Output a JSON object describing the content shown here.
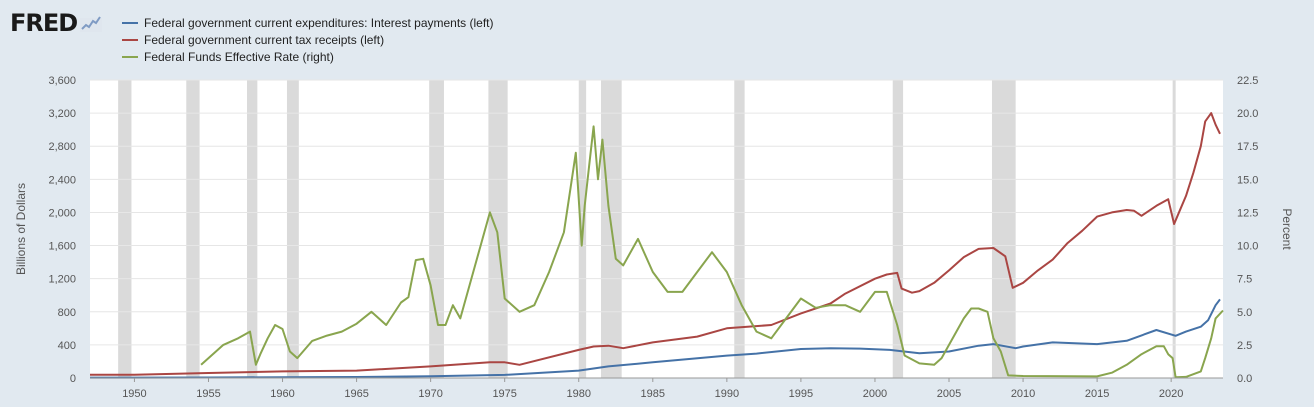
{
  "brand": {
    "logo_text": "FRED"
  },
  "colors": {
    "interest": "#4572a7",
    "receipts": "#aa4643",
    "fedfunds": "#89a54e",
    "recession": "#dadada",
    "plot_bg": "#ffffff",
    "axis_text": "#555555"
  },
  "chart_data": {
    "type": "line",
    "title": "",
    "xlabel": "",
    "ylabel_left": "Billions of Dollars",
    "ylabel_right": "Percent",
    "xlim": [
      1947,
      2023.5
    ],
    "ylim_left": [
      0,
      3600
    ],
    "ylim_right": [
      0,
      22.5
    ],
    "x_ticks": [
      1950,
      1955,
      1960,
      1965,
      1970,
      1975,
      1980,
      1985,
      1990,
      1995,
      2000,
      2005,
      2010,
      2015,
      2020
    ],
    "x_tick_labels": [
      "1950",
      "1955",
      "1960",
      "1965",
      "1970",
      "1975",
      "1980",
      "1985",
      "1990",
      "1995",
      "2000",
      "2005",
      "2010",
      "2015",
      "2020"
    ],
    "y_left_ticks": [
      0,
      400,
      800,
      1200,
      1600,
      2000,
      2400,
      2800,
      3200,
      3600
    ],
    "y_left_tick_labels": [
      "0",
      "400",
      "800",
      "1,200",
      "1,600",
      "2,000",
      "2,400",
      "2,800",
      "3,200",
      "3,600"
    ],
    "y_right_ticks": [
      0,
      2.5,
      5,
      7.5,
      10,
      12.5,
      15,
      17.5,
      20,
      22.5
    ],
    "y_right_tick_labels": [
      "0.0",
      "2.5",
      "5.0",
      "7.5",
      "10.0",
      "12.5",
      "15.0",
      "17.5",
      "20.0",
      "22.5"
    ],
    "recessions": [
      [
        1948.9,
        1949.8
      ],
      [
        1953.5,
        1954.4
      ],
      [
        1957.6,
        1958.3
      ],
      [
        1960.3,
        1961.1
      ],
      [
        1969.9,
        1970.9
      ],
      [
        1973.9,
        1975.2
      ],
      [
        1980.0,
        1980.5
      ],
      [
        1981.5,
        1982.9
      ],
      [
        1990.5,
        1991.2
      ],
      [
        2001.2,
        2001.9
      ],
      [
        2007.9,
        2009.5
      ],
      [
        2020.1,
        2020.3
      ]
    ],
    "series": [
      {
        "name": "Federal government current expenditures: Interest payments (left)",
        "axis": "left",
        "color": "#4572a7",
        "x": [
          1947,
          1950,
          1955,
          1960,
          1965,
          1970,
          1975,
          1980,
          1982,
          1985,
          1990,
          1992,
          1995,
          1997,
          1999,
          2001,
          2003,
          2005,
          2007,
          2008,
          2009.5,
          2010,
          2012,
          2015,
          2017,
          2019,
          2020.3,
          2021,
          2022,
          2022.5,
          2023,
          2023.3
        ],
        "y": [
          5,
          5,
          6,
          10,
          12,
          20,
          38,
          90,
          140,
          190,
          270,
          295,
          350,
          360,
          355,
          340,
          300,
          320,
          390,
          410,
          360,
          380,
          430,
          410,
          450,
          580,
          510,
          560,
          620,
          700,
          880,
          950
        ]
      },
      {
        "name": "Federal government current tax receipts (left)",
        "axis": "left",
        "color": "#aa4643",
        "x": [
          1947,
          1950,
          1955,
          1960,
          1965,
          1970,
          1974,
          1975,
          1976,
          1980,
          1981,
          1982,
          1983,
          1985,
          1988,
          1990,
          1993,
          1995,
          1997,
          1998,
          2000,
          2000.8,
          2001.5,
          2001.8,
          2002.5,
          2003,
          2004,
          2005,
          2006,
          2007,
          2008,
          2008.8,
          2009.3,
          2010,
          2011,
          2012,
          2013,
          2014,
          2015,
          2016,
          2017,
          2017.5,
          2018,
          2019,
          2019.8,
          2020.2,
          2020.5,
          2021,
          2021.5,
          2022,
          2022.3,
          2022.7,
          2023,
          2023.3
        ],
        "y": [
          40,
          40,
          60,
          80,
          90,
          140,
          190,
          190,
          160,
          340,
          380,
          390,
          360,
          430,
          500,
          600,
          640,
          780,
          900,
          1020,
          1200,
          1250,
          1270,
          1080,
          1030,
          1050,
          1150,
          1300,
          1460,
          1560,
          1570,
          1470,
          1090,
          1150,
          1300,
          1430,
          1630,
          1780,
          1950,
          2000,
          2030,
          2020,
          1960,
          2080,
          2160,
          1860,
          1990,
          2200,
          2480,
          2800,
          3100,
          3200,
          3060,
          2950
        ]
      },
      {
        "name": "Federal Funds Effective Rate (right)",
        "axis": "right",
        "color": "#89a54e",
        "x": [
          1954.5,
          1955,
          1956,
          1957,
          1957.8,
          1958.2,
          1958.5,
          1959,
          1959.5,
          1960,
          1960.5,
          1961,
          1962,
          1963,
          1964,
          1965,
          1966,
          1967,
          1968,
          1968.5,
          1969,
          1969.5,
          1970,
          1970.5,
          1971,
          1971.5,
          1972,
          1973,
          1973.5,
          1974,
          1974.5,
          1975,
          1976,
          1977,
          1978,
          1979,
          1979.8,
          1980.2,
          1980.4,
          1980.7,
          1981,
          1981.3,
          1981.6,
          1982,
          1982.5,
          1983,
          1984,
          1985,
          1986,
          1987,
          1988,
          1989,
          1990,
          1991,
          1992,
          1993,
          1994,
          1995,
          1996,
          1997,
          1998,
          1999,
          2000,
          2000.8,
          2001.5,
          2002,
          2003,
          2004,
          2004.5,
          2005,
          2006,
          2006.5,
          2007,
          2007.6,
          2008,
          2008.5,
          2009,
          2010,
          2015,
          2016,
          2017,
          2018,
          2019,
          2019.5,
          2019.8,
          2020.1,
          2020.3,
          2021,
          2022,
          2022.3,
          2022.7,
          2023,
          2023.5
        ],
        "y": [
          1.0,
          1.5,
          2.5,
          3.0,
          3.5,
          1.0,
          1.8,
          3.0,
          4.0,
          3.7,
          2.0,
          1.5,
          2.8,
          3.2,
          3.5,
          4.1,
          5.0,
          4.0,
          5.7,
          6.1,
          8.9,
          9.0,
          7.0,
          4.0,
          4.0,
          5.5,
          4.5,
          8.5,
          10.5,
          12.5,
          11.0,
          6.0,
          5.0,
          5.5,
          8.0,
          11.0,
          17.0,
          10.0,
          13.0,
          16.0,
          19.0,
          15.0,
          18.0,
          13.0,
          9.0,
          8.5,
          10.5,
          8.0,
          6.5,
          6.5,
          8.0,
          9.5,
          8.0,
          5.5,
          3.5,
          3.0,
          4.5,
          6.0,
          5.3,
          5.5,
          5.5,
          5.0,
          6.5,
          6.5,
          4.0,
          1.7,
          1.1,
          1.0,
          1.5,
          2.5,
          4.5,
          5.25,
          5.25,
          5.0,
          3.0,
          2.0,
          0.2,
          0.15,
          0.12,
          0.4,
          1.0,
          1.8,
          2.4,
          2.4,
          1.8,
          1.5,
          0.05,
          0.08,
          0.5,
          1.5,
          3.0,
          4.5,
          5.1
        ]
      }
    ]
  }
}
